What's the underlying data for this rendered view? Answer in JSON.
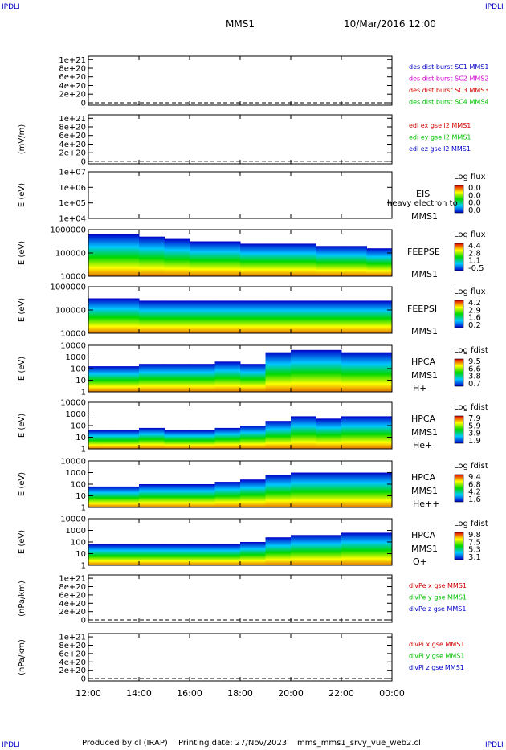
{
  "header": {
    "corner_tl": "IPDLI",
    "corner_tr": "IPDLI",
    "title": "MMS1",
    "datetime": "10/Mar/2016 12:00"
  },
  "footer": {
    "corner_bl": "IPDLI",
    "corner_br": "IPDLI",
    "produced": "Produced by cl (IRAP)",
    "printing": "Printing date: 27/Nov/2023",
    "file": "mms_mms1_srvy_vue_web2.cl"
  },
  "colors": {
    "mms1": "#0000c8",
    "mms2": "#d000d0",
    "mms3": "#d00000",
    "mms4": "#00c000",
    "x_comp": "#d00000",
    "y_comp": "#00c000",
    "z_comp": "#0000c8"
  },
  "chart_data": {
    "type": "heatmap",
    "x_ticks": [
      "12:00",
      "14:00",
      "16:00",
      "18:00",
      "20:00",
      "22:00",
      "00:00"
    ],
    "panels": [
      {
        "id": "p1",
        "kind": "line",
        "ylabel": "",
        "ylim": [
          0,
          1e+21
        ],
        "yticks": [
          "1e+21",
          "8e+20",
          "6e+20",
          "4e+20",
          "2e+20",
          "0"
        ],
        "legend": [
          {
            "text": "des dist burst SC1 MMS1",
            "color": "#0000c8"
          },
          {
            "text": "des dist burst SC2 MMS2",
            "color": "#d000d0"
          },
          {
            "text": "des dist burst SC3 MMS3",
            "color": "#d00000"
          },
          {
            "text": "des dist burst SC4 MMS4",
            "color": "#00c000"
          }
        ]
      },
      {
        "id": "p2",
        "kind": "line",
        "ylabel": "(mV/m)",
        "ylim": [
          0,
          1e+21
        ],
        "yticks": [
          "1e+21",
          "8e+20",
          "6e+20",
          "4e+20",
          "2e+20",
          "0"
        ],
        "legend": [
          {
            "text": "edi ex gse l2 MMS1",
            "color": "#d00000"
          },
          {
            "text": "edi ey gse l2 MMS1",
            "color": "#00c000"
          },
          {
            "text": "edi ez gse l2 MMS1",
            "color": "#0000c8"
          }
        ]
      },
      {
        "id": "p3",
        "kind": "spectrogram",
        "ylabel": "E (eV)",
        "yticks": [
          "1e+07",
          "1e+06",
          "1e+05",
          "1e+04"
        ],
        "labels": [
          "EIS",
          "MMS1"
        ],
        "overlay_text": "heavy electron to",
        "colorbar_title": "Log flux",
        "colorbar_ticks": [
          "0.0",
          "0.0",
          "0.0",
          "0.0"
        ],
        "profile": []
      },
      {
        "id": "p4",
        "kind": "spectrogram",
        "ylabel": "E (eV)",
        "yticks": [
          "1000000",
          "100000",
          "10000"
        ],
        "labels": [
          "FEEPSE",
          "MMS1"
        ],
        "colorbar_title": "Log flux",
        "colorbar_ticks": [
          "4.4",
          "2.8",
          "1.1",
          "-0.5"
        ],
        "profile": [
          0.9,
          0.9,
          0.85,
          0.8,
          0.75,
          0.75,
          0.7,
          0.7,
          0.7,
          0.65,
          0.65,
          0.6
        ]
      },
      {
        "id": "p5",
        "kind": "spectrogram",
        "ylabel": "E (eV)",
        "yticks": [
          "1000000",
          "100000",
          "10000"
        ],
        "labels": [
          "FEEPSI",
          "MMS1"
        ],
        "colorbar_title": "Log flux",
        "colorbar_ticks": [
          "4.2",
          "2.9",
          "1.6",
          "0.2"
        ],
        "profile": [
          0.75,
          0.75,
          0.7,
          0.7,
          0.7,
          0.7,
          0.7,
          0.7,
          0.7,
          0.7,
          0.7,
          0.7
        ]
      },
      {
        "id": "p6",
        "kind": "spectrogram",
        "ylabel": "E (eV)",
        "yticks": [
          "10000",
          "1000",
          "100",
          "10",
          "1"
        ],
        "labels": [
          "HPCA",
          "MMS1",
          "H+"
        ],
        "colorbar_title": "Log fdist",
        "colorbar_ticks": [
          "9.5",
          "6.6",
          "3.8",
          "0.7"
        ],
        "profile": [
          0.55,
          0.55,
          0.6,
          0.6,
          0.6,
          0.65,
          0.6,
          0.85,
          0.9,
          0.9,
          0.85,
          0.85
        ]
      },
      {
        "id": "p7",
        "kind": "spectrogram",
        "ylabel": "E (eV)",
        "yticks": [
          "10000",
          "1000",
          "100",
          "10",
          "1"
        ],
        "labels": [
          "HPCA",
          "MMS1",
          "He+"
        ],
        "colorbar_title": "Log fdist",
        "colorbar_ticks": [
          "7.9",
          "5.9",
          "3.9",
          "1.9"
        ],
        "profile": [
          0.4,
          0.4,
          0.45,
          0.4,
          0.4,
          0.45,
          0.5,
          0.6,
          0.7,
          0.65,
          0.7,
          0.7
        ]
      },
      {
        "id": "p8",
        "kind": "spectrogram",
        "ylabel": "E (eV)",
        "yticks": [
          "10000",
          "1000",
          "100",
          "10",
          "1"
        ],
        "labels": [
          "HPCA",
          "MMS1",
          "He++"
        ],
        "colorbar_title": "Log fdist",
        "colorbar_ticks": [
          "9.4",
          "6.8",
          "4.2",
          "1.6"
        ],
        "profile": [
          0.45,
          0.45,
          0.5,
          0.5,
          0.5,
          0.55,
          0.6,
          0.7,
          0.75,
          0.75,
          0.75,
          0.75
        ]
      },
      {
        "id": "p9",
        "kind": "spectrogram",
        "ylabel": "E (eV)",
        "yticks": [
          "10000",
          "1000",
          "100",
          "10",
          "1"
        ],
        "labels": [
          "HPCA",
          "MMS1",
          "O+"
        ],
        "colorbar_title": "Log fdist",
        "colorbar_ticks": [
          "9.8",
          "7.5",
          "5.3",
          "3.1"
        ],
        "profile": [
          0.45,
          0.45,
          0.45,
          0.45,
          0.45,
          0.45,
          0.5,
          0.6,
          0.65,
          0.65,
          0.7,
          0.7
        ]
      },
      {
        "id": "p10",
        "kind": "line",
        "ylabel": "(nPa/km)",
        "ylim": [
          0,
          1e+21
        ],
        "yticks": [
          "1e+21",
          "8e+20",
          "6e+20",
          "4e+20",
          "2e+20",
          "0"
        ],
        "legend": [
          {
            "text": "divPe x gse MMS1",
            "color": "#d00000"
          },
          {
            "text": "divPe y gse MMS1",
            "color": "#00c000"
          },
          {
            "text": "divPe z gse MMS1",
            "color": "#0000c8"
          }
        ]
      },
      {
        "id": "p11",
        "kind": "line",
        "ylabel": "(nPa/km)",
        "ylim": [
          0,
          1e+21
        ],
        "yticks": [
          "1e+21",
          "8e+20",
          "6e+20",
          "4e+20",
          "2e+20",
          "0"
        ],
        "legend": [
          {
            "text": "divPi x gse MMS1",
            "color": "#d00000"
          },
          {
            "text": "divPi y gse MMS1",
            "color": "#00c000"
          },
          {
            "text": "divPi z gse MMS1",
            "color": "#0000c8"
          }
        ]
      }
    ]
  }
}
